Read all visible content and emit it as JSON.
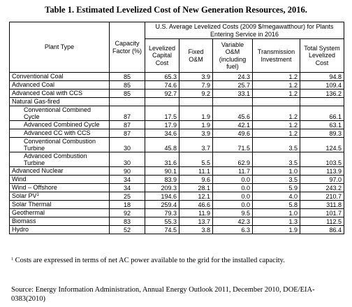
{
  "title": "Table 1. Estimated Levelized Cost of New Generation Resources, 2016.",
  "headers": {
    "plant_type": "Plant Type",
    "capacity_factor": "Capacity Factor (%)",
    "group": "U.S. Average Levelized Costs (2009 $/megawatthour) for Plants Entering Service in 2016",
    "levelized_capital": "Levelized Capital Cost",
    "fixed_om": "Fixed O&M",
    "variable_om": "Variable O&M (including fuel)",
    "transmission": "Transmission Investment",
    "total": "Total System Levelized Cost"
  },
  "rows": [
    {
      "name": "Conventional Coal",
      "cf": "85",
      "capital": "65.3",
      "fixed": "3.9",
      "variable": "24.3",
      "trans": "1.2",
      "total": "94.8"
    },
    {
      "name": "Advanced Coal",
      "cf": "85",
      "capital": "74.6",
      "fixed": "7.9",
      "variable": "25.7",
      "trans": "1.2",
      "total": "109.4"
    },
    {
      "name": "Advanced Coal with CCS",
      "cf": "85",
      "capital": "92.7",
      "fixed": "9.2",
      "variable": "33.1",
      "trans": "1.2",
      "total": "136.2"
    },
    {
      "name": "Natural Gas-fired",
      "cf": "",
      "capital": "",
      "fixed": "",
      "variable": "",
      "trans": "",
      "total": ""
    },
    {
      "name": "Conventional Combined Cycle",
      "cf": "87",
      "capital": "17.5",
      "fixed": "1.9",
      "variable": "45.6",
      "trans": "1.2",
      "total": "66.1"
    },
    {
      "name": "Advanced Combined Cycle",
      "cf": "87",
      "capital": "17.9",
      "fixed": "1.9",
      "variable": "42.1",
      "trans": "1.2",
      "total": "63.1"
    },
    {
      "name": "Advanced CC with CCS",
      "cf": "87",
      "capital": "34.6",
      "fixed": "3.9",
      "variable": "49.6",
      "trans": "1.2",
      "total": "89.3"
    },
    {
      "name": "Conventional Combustion Turbine",
      "cf": "30",
      "capital": "45.8",
      "fixed": "3.7",
      "variable": "71.5",
      "trans": "3.5",
      "total": "124.5"
    },
    {
      "name": "Advanced Combustion Turbine",
      "cf": "30",
      "capital": "31.6",
      "fixed": "5.5",
      "variable": "62.9",
      "trans": "3.5",
      "total": "103.5"
    },
    {
      "name": "Advanced Nuclear",
      "cf": "90",
      "capital": "90.1",
      "fixed": "11.1",
      "variable": "11.7",
      "trans": "1.0",
      "total": "113.9"
    },
    {
      "name": "Wind",
      "cf": "34",
      "capital": "83.9",
      "fixed": "9.6",
      "variable": "0.0",
      "trans": "3.5",
      "total": "97.0"
    },
    {
      "name": "Wind – Offshore",
      "cf": "34",
      "capital": "209.3",
      "fixed": "28.1",
      "variable": "0.0",
      "trans": "5.9",
      "total": "243.2"
    },
    {
      "name": "Solar PV",
      "sup": "1",
      "cf": "25",
      "capital": "194.6",
      "fixed": "12.1",
      "variable": "0.0",
      "trans": "4.0",
      "total": "210.7"
    },
    {
      "name": "Solar Thermal",
      "cf": "18",
      "capital": "259.4",
      "fixed": "46.6",
      "variable": "0.0",
      "trans": "5.8",
      "total": "311.8"
    },
    {
      "name": "Geothermal",
      "cf": "92",
      "capital": "79.3",
      "fixed": "11.9",
      "variable": "9.5",
      "trans": "1.0",
      "total": "101.7"
    },
    {
      "name": "Biomass",
      "cf": "83",
      "capital": "55.3",
      "fixed": "13.7",
      "variable": "42.3",
      "trans": "1.3",
      "total": "112.5"
    },
    {
      "name": "Hydro",
      "cf": "52",
      "capital": "74.5",
      "fixed": "3.8",
      "variable": "6.3",
      "trans": "1.9",
      "total": "86.4"
    }
  ],
  "footnote": {
    "marker": "1",
    "text": " Costs are expressed in terms of net AC power available to the grid for the installed capacity."
  },
  "source": "Source: Energy Information Administration, Annual Energy Outlook 2011, December 2010, DOE/EIA-0383(2010)"
}
